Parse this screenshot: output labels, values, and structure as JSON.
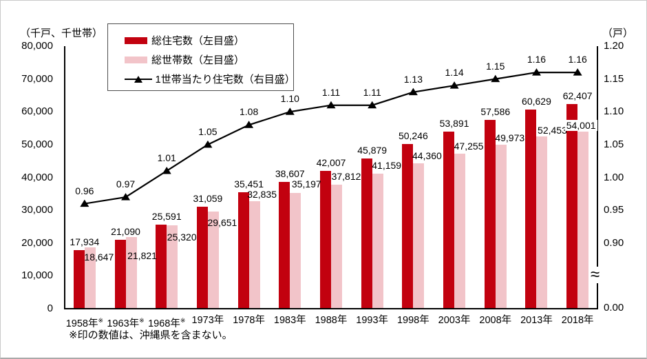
{
  "chart_data": {
    "type": "bar",
    "title": "",
    "categories": [
      {
        "label": "1958年",
        "note": "※"
      },
      {
        "label": "1963年",
        "note": "※"
      },
      {
        "label": "1968年",
        "note": "※"
      },
      {
        "label": "1973年",
        "note": ""
      },
      {
        "label": "1978年",
        "note": ""
      },
      {
        "label": "1983年",
        "note": ""
      },
      {
        "label": "1988年",
        "note": ""
      },
      {
        "label": "1993年",
        "note": ""
      },
      {
        "label": "1998年",
        "note": ""
      },
      {
        "label": "2003年",
        "note": ""
      },
      {
        "label": "2008年",
        "note": ""
      },
      {
        "label": "2013年",
        "note": ""
      },
      {
        "label": "2018年",
        "note": ""
      }
    ],
    "series": [
      {
        "name": "総住宅数（左目盛）",
        "type": "bar",
        "axis": "left",
        "color": "#c2010f",
        "values": [
          17934,
          21090,
          25591,
          31059,
          35451,
          38607,
          42007,
          45879,
          50246,
          53891,
          57586,
          60629,
          62407
        ]
      },
      {
        "name": "総世帯数（左目盛）",
        "type": "bar",
        "axis": "left",
        "color": "#f2c4c9",
        "values": [
          18647,
          21821,
          25320,
          29651,
          32835,
          35197,
          37812,
          41159,
          44360,
          47255,
          49973,
          52453,
          54001
        ]
      },
      {
        "name": "1世帯当たり住宅数（右目盛）",
        "type": "line",
        "axis": "right",
        "color": "#000000",
        "values": [
          0.96,
          0.97,
          1.01,
          1.05,
          1.08,
          1.1,
          1.11,
          1.11,
          1.13,
          1.14,
          1.15,
          1.16,
          1.16
        ]
      }
    ],
    "left_axis": {
      "unit": "（千戸、千世帯）",
      "ticks": [
        "80,000",
        "70,000",
        "60,000",
        "50,000",
        "40,000",
        "30,000",
        "20,000",
        "10,000",
        "0"
      ],
      "min": 0,
      "max": 80000,
      "gridlines": false
    },
    "right_axis": {
      "unit": "（戸）",
      "ticks": [
        "1.20",
        "1.15",
        "1.10",
        "1.05",
        "1.00",
        "0.95",
        "0.90"
      ],
      "zero_tick": "0.00",
      "axis_break": true,
      "min": 0.9,
      "max": 1.2
    },
    "legend_position": "top-left-inside",
    "footnote": "※印の数値は、沖縄県を含まない。"
  }
}
